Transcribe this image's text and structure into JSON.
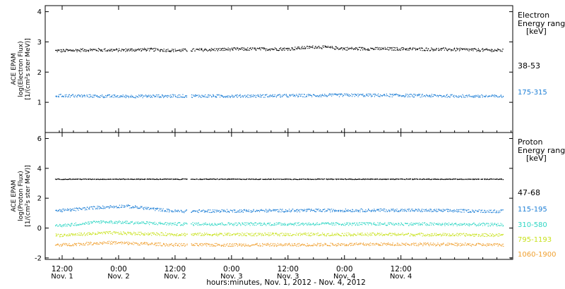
{
  "chart_data": [
    {
      "type": "scatter",
      "ylabel": [
        "ACE EPAM",
        "log(Electron Flux)",
        "[1/(cm²s ster MeV)]"
      ],
      "ylim": [
        0,
        4.2
      ],
      "yticks": [
        1,
        2,
        3,
        4
      ],
      "legend_title": [
        "Electron",
        "Energy ranges",
        "[keV]"
      ],
      "series": [
        {
          "name": "38-53",
          "color": "#000000",
          "level": 2.75,
          "points": [
            {
              "x": 0.0,
              "y": 2.72
            },
            {
              "x": 0.25,
              "y": 2.75
            },
            {
              "x": 0.5,
              "y": 2.74
            },
            {
              "x": 0.75,
              "y": 2.76
            },
            {
              "x": 1.0,
              "y": 2.73
            },
            {
              "x": 1.5,
              "y": 2.77
            },
            {
              "x": 2.0,
              "y": 2.78
            },
            {
              "x": 2.25,
              "y": 2.85
            },
            {
              "x": 2.5,
              "y": 2.79
            },
            {
              "x": 3.0,
              "y": 2.78
            },
            {
              "x": 3.5,
              "y": 2.76
            },
            {
              "x": 3.9,
              "y": 2.73
            }
          ]
        },
        {
          "name": "175-315",
          "color": "#1e7fd6",
          "level": 1.22,
          "points": [
            {
              "x": 0.0,
              "y": 1.23
            },
            {
              "x": 0.5,
              "y": 1.21
            },
            {
              "x": 1.0,
              "y": 1.22
            },
            {
              "x": 1.5,
              "y": 1.22
            },
            {
              "x": 2.0,
              "y": 1.23
            },
            {
              "x": 2.5,
              "y": 1.25
            },
            {
              "x": 3.0,
              "y": 1.24
            },
            {
              "x": 3.5,
              "y": 1.22
            },
            {
              "x": 3.9,
              "y": 1.21
            }
          ]
        }
      ]
    },
    {
      "type": "scatter",
      "ylabel": [
        "ACE EPAM",
        "log(Proton Flux)",
        "[1/(cm²s ster MeV)]"
      ],
      "ylim": [
        -2.1,
        6.4
      ],
      "yticks": [
        -2,
        0,
        2,
        4,
        6
      ],
      "legend_title": [
        "Proton",
        "Energy ranges",
        "[keV]"
      ],
      "series": [
        {
          "name": "47-68",
          "color": "#000000",
          "level": 3.3,
          "points": [
            {
              "x": 0.0,
              "y": 3.3
            },
            {
              "x": 1.0,
              "y": 3.3
            },
            {
              "x": 2.0,
              "y": 3.3
            },
            {
              "x": 3.0,
              "y": 3.3
            },
            {
              "x": 3.9,
              "y": 3.3
            }
          ]
        },
        {
          "name": "115-195",
          "color": "#1e7fd6",
          "level": 1.2,
          "points": [
            {
              "x": 0.0,
              "y": 1.2
            },
            {
              "x": 0.3,
              "y": 1.4
            },
            {
              "x": 0.55,
              "y": 1.5
            },
            {
              "x": 1.0,
              "y": 1.15
            },
            {
              "x": 2.0,
              "y": 1.2
            },
            {
              "x": 3.0,
              "y": 1.22
            },
            {
              "x": 3.9,
              "y": 1.15
            }
          ]
        },
        {
          "name": "310-580",
          "color": "#2fd6c4",
          "level": 0.3,
          "points": [
            {
              "x": 0.0,
              "y": 0.2
            },
            {
              "x": 0.35,
              "y": 0.45
            },
            {
              "x": 1.0,
              "y": 0.3
            },
            {
              "x": 2.0,
              "y": 0.3
            },
            {
              "x": 3.0,
              "y": 0.3
            },
            {
              "x": 3.9,
              "y": 0.25
            }
          ]
        },
        {
          "name": "795-1193",
          "color": "#c8e21c",
          "level": -0.4,
          "points": [
            {
              "x": 0.0,
              "y": -0.45
            },
            {
              "x": 0.4,
              "y": -0.3
            },
            {
              "x": 1.0,
              "y": -0.4
            },
            {
              "x": 2.0,
              "y": -0.4
            },
            {
              "x": 3.0,
              "y": -0.4
            },
            {
              "x": 3.9,
              "y": -0.45
            }
          ]
        },
        {
          "name": "1060-1900",
          "color": "#f0a030",
          "level": -1.1,
          "points": [
            {
              "x": 0.0,
              "y": -1.1
            },
            {
              "x": 0.4,
              "y": -0.95
            },
            {
              "x": 1.0,
              "y": -1.1
            },
            {
              "x": 2.0,
              "y": -1.1
            },
            {
              "x": 3.0,
              "y": -1.05
            },
            {
              "x": 3.9,
              "y": -1.1
            }
          ]
        }
      ]
    }
  ],
  "x_axis": {
    "xlim": [
      -0.15,
      3.99
    ],
    "xlabel": "hours:minutes, Nov. 1, 2012 - Nov. 4, 2012",
    "ticks": [
      {
        "t": 0.0,
        "time": "12:00",
        "date": "Nov. 1"
      },
      {
        "t": 0.5,
        "time": "0:00",
        "date": "Nov. 2"
      },
      {
        "t": 1.0,
        "time": "12:00",
        "date": "Nov. 2"
      },
      {
        "t": 1.5,
        "time": "0:00",
        "date": "Nov. 3"
      },
      {
        "t": 2.0,
        "time": "12:00",
        "date": "Nov. 3"
      },
      {
        "t": 2.5,
        "time": "0:00",
        "date": "Nov. 4"
      },
      {
        "t": 3.0,
        "time": "12:00",
        "date": "Nov. 4"
      }
    ],
    "data_gap": [
      1.1,
      1.14
    ]
  }
}
